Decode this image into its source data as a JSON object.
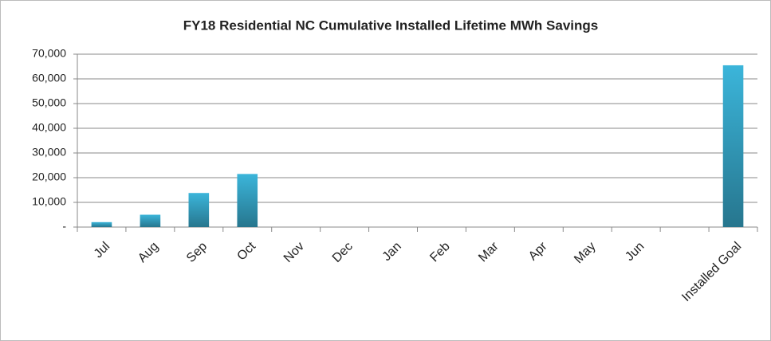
{
  "chart_data": {
    "type": "bar",
    "title": "FY18 Residential NC Cumulative Installed Lifetime MWh Savings",
    "categories": [
      "Jul",
      "Aug",
      "Sep",
      "Oct",
      "Nov",
      "Dec",
      "Jan",
      "Feb",
      "Mar",
      "Apr",
      "May",
      "Jun",
      null,
      "Installed Goal"
    ],
    "values": [
      2000,
      5000,
      13800,
      21500,
      null,
      null,
      null,
      null,
      null,
      null,
      null,
      null,
      null,
      65500
    ],
    "color": "#3bb5da",
    "ylim": [
      0,
      70000
    ],
    "yticks": [
      {
        "value": 0,
        "label": "-"
      },
      {
        "value": 10000,
        "label": "10,000"
      },
      {
        "value": 20000,
        "label": "20,000"
      },
      {
        "value": 30000,
        "label": "30,000"
      },
      {
        "value": 40000,
        "label": "40,000"
      },
      {
        "value": 50000,
        "label": "50,000"
      },
      {
        "value": 60000,
        "label": "60,000"
      },
      {
        "value": 70000,
        "label": "70,000"
      }
    ],
    "grid": true
  }
}
